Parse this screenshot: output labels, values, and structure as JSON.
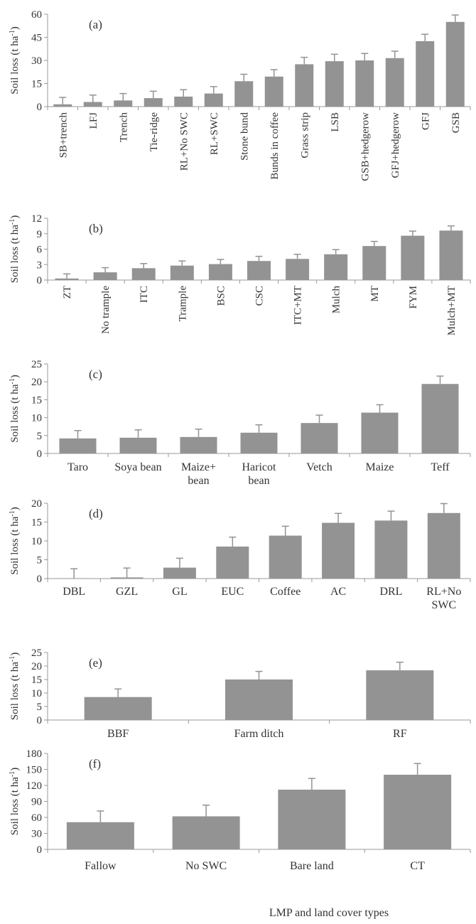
{
  "figure": {
    "xlabel": "LMP and land cover types"
  },
  "chart_data": [
    {
      "type": "bar",
      "panel_label": "(a)",
      "ylabel": "Soil loss (t ha-1)",
      "ylim": [
        0,
        60
      ],
      "yticks": [
        0,
        15,
        30,
        45,
        60
      ],
      "rotated_labels": true,
      "categories": [
        "SB+trench",
        "LFJ",
        "Trench",
        "Tie-ridge",
        "RL+No SWC",
        "RL+SWC",
        "Stone bund",
        "Bunds in coffee",
        "Grass strip",
        "LSB",
        "GSB+hedgerow",
        "GFJ+hedgerow",
        "GFJ",
        "GSB"
      ],
      "values": [
        1.5,
        3,
        4,
        5.5,
        6.5,
        8.5,
        16.5,
        19.5,
        27.5,
        29.5,
        30,
        31.5,
        42.5,
        55
      ],
      "errors": [
        4.5,
        4.5,
        4.5,
        4.5,
        4.5,
        4.5,
        4.5,
        4.5,
        4.5,
        4.5,
        4.5,
        4.5,
        4.5,
        4.5
      ]
    },
    {
      "type": "bar",
      "panel_label": "(b)",
      "ylabel": "Soil loss (t ha-1)",
      "ylim": [
        0,
        12
      ],
      "yticks": [
        0,
        3,
        6,
        9,
        12
      ],
      "rotated_labels": true,
      "categories": [
        "ZT",
        "No trample",
        "ITC",
        "Trample",
        "BSC",
        "CSC",
        "ITC+MT",
        "Mulch",
        "MT",
        "FYM",
        "Mulch+MT"
      ],
      "values": [
        0.3,
        1.5,
        2.3,
        2.8,
        3.1,
        3.7,
        4.1,
        5.0,
        6.6,
        8.6,
        9.6
      ],
      "errors": [
        0.9,
        0.9,
        0.9,
        0.9,
        0.9,
        0.9,
        0.9,
        0.9,
        0.9,
        0.9,
        0.9
      ]
    },
    {
      "type": "bar",
      "panel_label": "(c)",
      "ylabel": "Soil loss (t ha-1)",
      "ylim": [
        0,
        25
      ],
      "yticks": [
        0,
        5,
        10,
        15,
        20,
        25
      ],
      "rotated_labels": false,
      "categories": [
        "Taro",
        "Soya bean",
        "Maize+\nbean",
        "Haricot\nbean",
        "Vetch",
        "Maize",
        "Teff"
      ],
      "values": [
        4.2,
        4.4,
        4.6,
        5.8,
        8.5,
        11.4,
        19.4
      ],
      "errors": [
        2.2,
        2.2,
        2.2,
        2.2,
        2.2,
        2.2,
        2.2
      ]
    },
    {
      "type": "bar",
      "panel_label": "(d)",
      "ylabel": "Soil loss (t ha-1)",
      "ylim": [
        0,
        20
      ],
      "yticks": [
        0,
        5,
        10,
        15,
        20
      ],
      "rotated_labels": false,
      "categories": [
        "DBL",
        "GZL",
        "GL",
        "EUC",
        "Coffee",
        "AC",
        "DRL",
        "RL+No\nSWC"
      ],
      "values": [
        0.1,
        0.3,
        2.9,
        8.5,
        11.4,
        14.8,
        15.4,
        17.4
      ],
      "errors": [
        2.5,
        2.5,
        2.5,
        2.5,
        2.5,
        2.5,
        2.5,
        2.5
      ]
    },
    {
      "type": "bar",
      "panel_label": "(e)",
      "ylabel": "Soil loss (t ha-1)",
      "ylim": [
        0,
        25
      ],
      "yticks": [
        0,
        5,
        10,
        15,
        20,
        25
      ],
      "rotated_labels": false,
      "categories": [
        "BBF",
        "Farm ditch",
        "RF"
      ],
      "values": [
        8.5,
        15,
        18.4
      ],
      "errors": [
        3,
        3,
        3
      ]
    },
    {
      "type": "bar",
      "panel_label": "(f)",
      "ylabel": "Soil loss (t ha-1)",
      "ylim": [
        0,
        180
      ],
      "yticks": [
        0,
        30,
        60,
        90,
        120,
        150,
        180
      ],
      "rotated_labels": false,
      "categories": [
        "Fallow",
        "No SWC",
        "Bare land",
        "CT"
      ],
      "values": [
        51,
        62,
        112,
        140
      ],
      "errors": [
        21,
        21,
        21,
        21
      ]
    }
  ],
  "colors": {
    "bar": "#939393",
    "axis": "#9a9a9a",
    "text": "#333333"
  }
}
